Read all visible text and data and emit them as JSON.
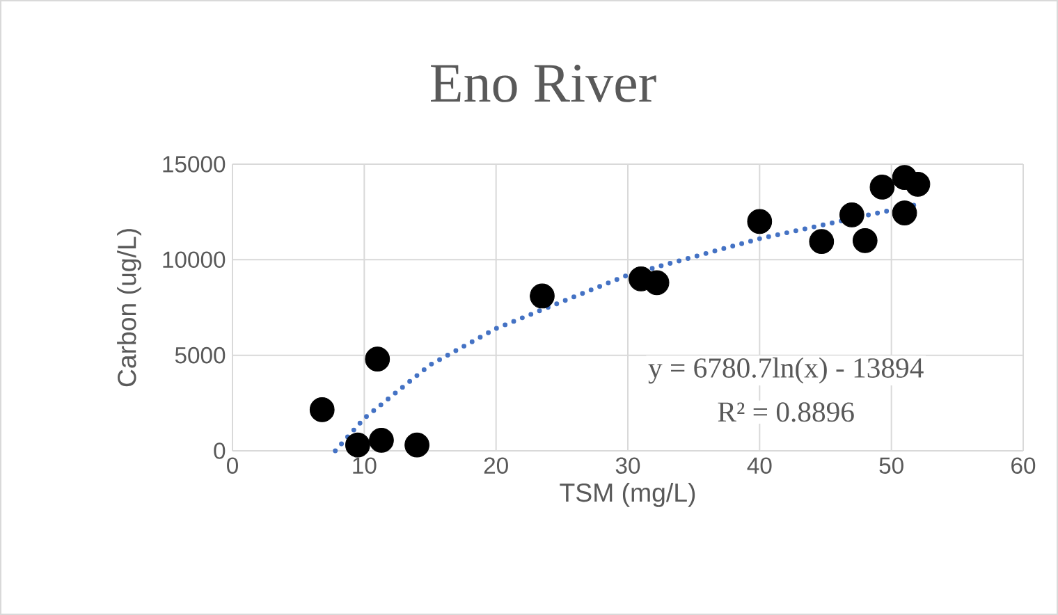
{
  "chart_data": {
    "type": "scatter",
    "title": "Eno River",
    "xlabel": "TSM (mg/L)",
    "ylabel": "Carbon (ug/L)",
    "xlim": [
      0,
      60
    ],
    "xticks": [
      0,
      10,
      20,
      30,
      40,
      50,
      60
    ],
    "ylim": [
      0,
      15000
    ],
    "yticks": [
      0,
      5000,
      10000,
      15000
    ],
    "grid": true,
    "legend": false,
    "series": [
      {
        "color": "#000000",
        "marker": "circle",
        "x": [
          6.8,
          9.5,
          11,
          11.3,
          14,
          23.5,
          31,
          32.2,
          40,
          44.7,
          47,
          48,
          49.3,
          51,
          51,
          52
        ],
        "values": [
          2150,
          300,
          4800,
          550,
          300,
          8100,
          9000,
          8800,
          12000,
          10950,
          12350,
          11000,
          13800,
          14300,
          12450,
          13950
        ]
      },
      {
        "type": "line",
        "color": "#4472c4",
        "line_style": "dotted",
        "x": [
          7.8,
          10,
          15,
          20,
          30,
          40,
          52
        ],
        "values": [
          0,
          1700,
          4500,
          6400,
          9200,
          11100,
          12900
        ]
      }
    ],
    "annotations": [
      "y = 6780.7ln(x) - 13894",
      "R² = 0.8896"
    ]
  }
}
